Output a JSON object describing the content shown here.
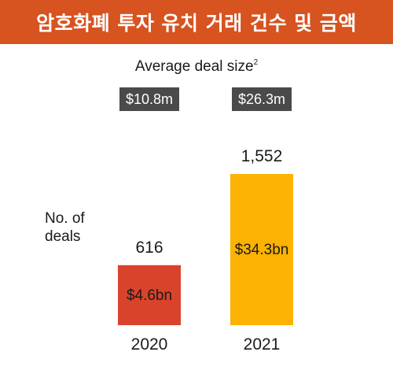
{
  "header": {
    "title": "암호화폐 투자 유치 거래 건수 및 금액"
  },
  "chart_data": {
    "type": "bar",
    "subtitle": "Average deal size",
    "subtitle_note": "2",
    "ylabel_line1": "No. of",
    "ylabel_line2": "deals",
    "categories": [
      "2020",
      "2021"
    ],
    "series": [
      {
        "values": [
          616,
          1552
        ],
        "value_labels": [
          "616",
          "1,552"
        ],
        "amount_labels": [
          "$4.6bn",
          "$34.3bn"
        ],
        "avg_deal_size_labels": [
          "$10.8m",
          "$26.3m"
        ]
      }
    ],
    "colors": {
      "header": "#d7531f",
      "bar_2020": "#d9432b",
      "bar_2021": "#fbb200",
      "avg_box": "#4a4a4a"
    },
    "ylim": [
      0,
      1552
    ],
    "grid": false,
    "legend": "none"
  }
}
